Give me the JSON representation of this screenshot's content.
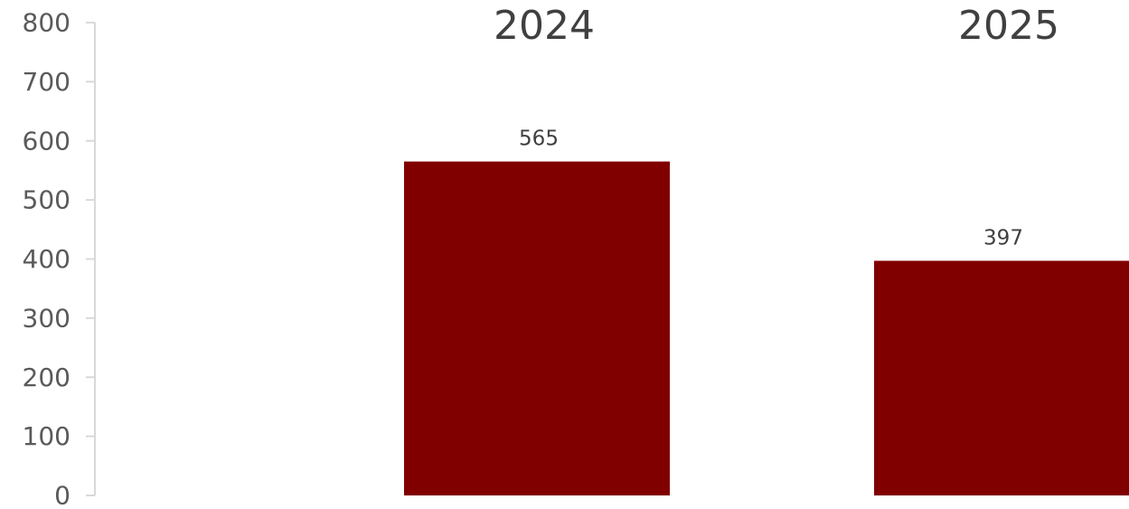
{
  "chart_data": {
    "type": "bar",
    "categories": [
      "2024",
      "2025"
    ],
    "values": [
      565,
      397
    ],
    "data_labels": [
      "565",
      "397"
    ],
    "title": "",
    "xlabel": "",
    "ylabel": "",
    "ylim": [
      0,
      800
    ],
    "y_ticks": [
      0,
      100,
      200,
      300,
      400,
      500,
      600,
      700,
      800
    ],
    "y_tick_labels": [
      "0",
      "100",
      "200",
      "300",
      "400",
      "500",
      "600",
      "700",
      "800"
    ],
    "x_axis_position": "top",
    "grid": false,
    "legend": false,
    "colors": {
      "bar": "#800000",
      "axis": "#d9d9d9",
      "tick_text": "#5a5a5a",
      "label_text": "#404040"
    }
  }
}
